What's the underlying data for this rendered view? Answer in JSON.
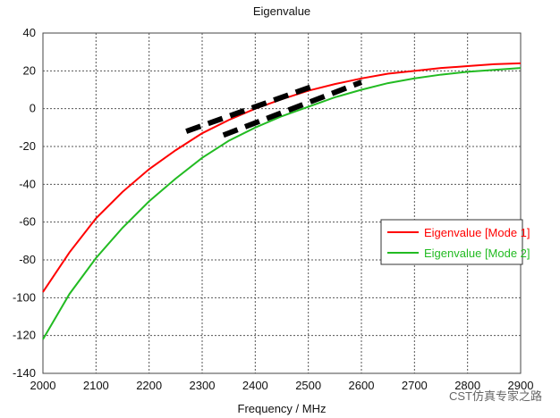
{
  "chart_data": {
    "type": "line",
    "title": "Eigenvalue",
    "xlabel": "Frequency / MHz",
    "ylabel": "",
    "xlim": [
      2000,
      2900
    ],
    "ylim": [
      -140,
      40
    ],
    "xticks": [
      2000,
      2100,
      2200,
      2300,
      2400,
      2500,
      2600,
      2700,
      2800,
      2900
    ],
    "yticks": [
      -140,
      -120,
      -100,
      -80,
      -60,
      -40,
      -20,
      0,
      20,
      40
    ],
    "grid": true,
    "legend_placement": "right",
    "series": [
      {
        "name": "Eigenvalue [Mode 1]",
        "color": "#ff0000",
        "x": [
          2000,
          2050,
          2100,
          2150,
          2200,
          2250,
          2300,
          2350,
          2400,
          2450,
          2500,
          2550,
          2600,
          2650,
          2700,
          2750,
          2800,
          2850,
          2900
        ],
        "y": [
          -97,
          -76,
          -58,
          -44,
          -32,
          -22,
          -13,
          -6,
          0,
          5,
          9.5,
          13,
          16,
          18.5,
          20,
          21.5,
          22.5,
          23.5,
          24
        ]
      },
      {
        "name": "Eigenvalue [Mode 2]",
        "color": "#22bb22",
        "x": [
          2000,
          2050,
          2100,
          2150,
          2200,
          2250,
          2300,
          2350,
          2400,
          2450,
          2500,
          2550,
          2600,
          2650,
          2700,
          2750,
          2800,
          2850,
          2900
        ],
        "y": [
          -122,
          -98,
          -79,
          -63,
          -49,
          -37,
          -26,
          -17,
          -10,
          -4,
          1,
          6,
          10,
          13.5,
          16,
          18,
          19.5,
          20.5,
          21.5
        ]
      }
    ],
    "annotations": [
      {
        "type": "dashed-line",
        "color": "#000000",
        "x": [
          2270,
          2510
        ],
        "y": [
          -12,
          12
        ]
      },
      {
        "type": "dashed-line",
        "color": "#000000",
        "x": [
          2340,
          2600
        ],
        "y": [
          -14,
          14
        ]
      }
    ]
  },
  "watermark_text": "CST仿真专家之路"
}
